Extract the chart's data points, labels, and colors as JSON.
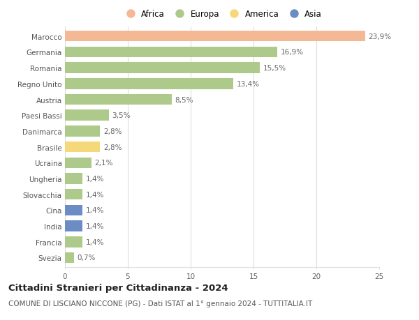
{
  "categories": [
    "Marocco",
    "Germania",
    "Romania",
    "Regno Unito",
    "Austria",
    "Paesi Bassi",
    "Danimarca",
    "Brasile",
    "Ucraina",
    "Ungheria",
    "Slovacchia",
    "Cina",
    "India",
    "Francia",
    "Svezia"
  ],
  "values": [
    23.9,
    16.9,
    15.5,
    13.4,
    8.5,
    3.5,
    2.8,
    2.8,
    2.1,
    1.4,
    1.4,
    1.4,
    1.4,
    1.4,
    0.7
  ],
  "labels": [
    "23,9%",
    "16,9%",
    "15,5%",
    "13,4%",
    "8,5%",
    "3,5%",
    "2,8%",
    "2,8%",
    "2,1%",
    "1,4%",
    "1,4%",
    "1,4%",
    "1,4%",
    "1,4%",
    "0,7%"
  ],
  "continents": [
    "Africa",
    "Europa",
    "Europa",
    "Europa",
    "Europa",
    "Europa",
    "Europa",
    "America",
    "Europa",
    "Europa",
    "Europa",
    "Asia",
    "Asia",
    "Europa",
    "Europa"
  ],
  "colors": {
    "Africa": "#F5B895",
    "Europa": "#AECA8B",
    "America": "#F5D87A",
    "Asia": "#6B8DC4"
  },
  "legend_order": [
    "Africa",
    "Europa",
    "America",
    "Asia"
  ],
  "legend_colors": [
    "#F5B895",
    "#AECA8B",
    "#F5D87A",
    "#6B8DC4"
  ],
  "title": "Cittadini Stranieri per Cittadinanza - 2024",
  "subtitle": "COMUNE DI LISCIANO NICCONE (PG) - Dati ISTAT al 1° gennaio 2024 - TUTTITALIA.IT",
  "xlim": [
    0,
    25
  ],
  "xticks": [
    0,
    5,
    10,
    15,
    20,
    25
  ],
  "background_color": "#ffffff",
  "grid_color": "#dddddd",
  "bar_height": 0.68,
  "title_fontsize": 9.5,
  "subtitle_fontsize": 7.5,
  "label_fontsize": 7.5,
  "tick_fontsize": 7.5,
  "legend_fontsize": 8.5
}
